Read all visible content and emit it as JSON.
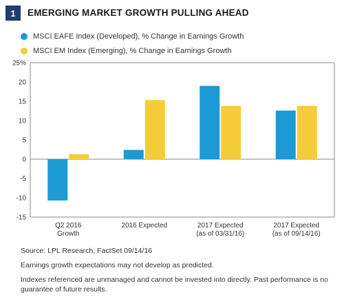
{
  "figure": {
    "number": "1",
    "title": "EMERGING MARKET GROWTH PULLING AHEAD"
  },
  "chart_data": {
    "type": "bar",
    "categories": [
      [
        "Q2 2016",
        "Growth"
      ],
      [
        "2016 Expected"
      ],
      [
        "2017 Expected",
        "(as of 03/31/16)"
      ],
      [
        "2017 Expected",
        "(as of 09/14/16)"
      ]
    ],
    "series": [
      {
        "name": "MSCI EAFE Index (Developed), % Change in Earnings Growth",
        "color": "#1b9ad6",
        "values": [
          -10.7,
          2.4,
          19.0,
          12.6
        ]
      },
      {
        "name": "MSCI EM Index (Emerging), % Change in Earnings Growth",
        "color": "#f5cc3a",
        "values": [
          1.3,
          15.3,
          13.8,
          13.8
        ]
      }
    ],
    "yticks": [
      "25%",
      "20",
      "15",
      "10",
      "5",
      "0",
      "-5",
      "-10",
      "-15"
    ],
    "ylim": [
      -15,
      25
    ],
    "grid": false
  },
  "footnotes": {
    "source": "Source: LPL Research, FactSet  09/14/16",
    "disclaimer1": "Earnings growth expectations may not develop as predicted.",
    "disclaimer2": "Indexes referenced are unmanaged and cannot be invested into directly. Past performance is no guarantee of future results."
  }
}
